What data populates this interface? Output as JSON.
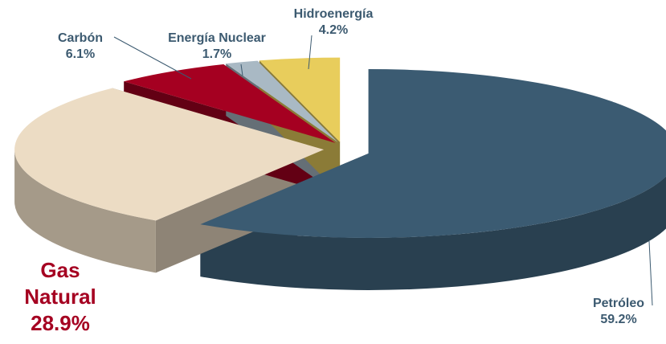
{
  "chart_data": {
    "type": "pie3d",
    "categories": [
      "Petróleo",
      "Gas Natural",
      "Carbón",
      "Energía Nuclear",
      "Hidroenergía"
    ],
    "values": [
      59.2,
      28.9,
      6.1,
      1.7,
      4.2
    ],
    "value_labels": [
      "59.2%",
      "28.9%",
      "6.1%",
      "1.7%",
      "4.2%"
    ],
    "colors": [
      "#3b5b72",
      "#ecdcc4",
      "#a50021",
      "#a9b9c4",
      "#e8cd5c"
    ]
  }
}
